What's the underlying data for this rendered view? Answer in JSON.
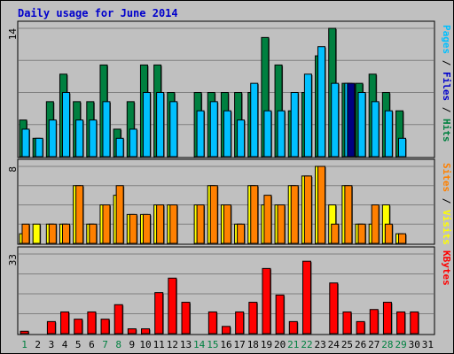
{
  "chart_data": {
    "type": "bar",
    "title": "Daily usage for June 2014",
    "categories": [
      "1",
      "2",
      "3",
      "4",
      "5",
      "6",
      "7",
      "8",
      "9",
      "10",
      "11",
      "12",
      "13",
      "14",
      "15",
      "16",
      "17",
      "18",
      "19",
      "20",
      "21",
      "22",
      "23",
      "24",
      "25",
      "26",
      "27",
      "28",
      "29",
      "30",
      "31"
    ],
    "weekend_days": [
      1,
      7,
      8,
      14,
      15,
      21,
      22,
      28,
      29
    ],
    "colors": {
      "hits": "#008040",
      "files": "#00c0ff",
      "pages": "#000080",
      "visits": "#ffff00",
      "sites": "#ff8000",
      "kbytes": "#ff0000",
      "plot_bg": "#c0c0c0",
      "grid": "#808080",
      "weekday_label": "#000000",
      "weekend_label": "#008040",
      "title": "#0000cc"
    },
    "panels": [
      {
        "name": "hits-files-pages",
        "ymax": 14,
        "ymax_label": "14",
        "legend": [
          {
            "text": "Pages",
            "color": "#00c0ff"
          },
          {
            "text": " / ",
            "color": "#000000"
          },
          {
            "text": "Files",
            "color": "#0000cc"
          },
          {
            "text": " / ",
            "color": "#000000"
          },
          {
            "text": "Hits",
            "color": "#008040"
          }
        ],
        "series": [
          {
            "name": "Hits",
            "color": "#008040",
            "values": [
              4,
              2,
              6,
              9,
              6,
              6,
              10,
              3,
              6,
              10,
              10,
              7,
              0,
              7,
              7,
              7,
              7,
              7,
              13,
              10,
              5,
              7,
              11,
              14,
              8,
              8,
              9,
              7,
              5,
              0,
              0
            ]
          },
          {
            "name": "Files",
            "color": "#00c0ff",
            "values": [
              3,
              2,
              4,
              7,
              4,
              4,
              6,
              2,
              3,
              7,
              7,
              6,
              0,
              5,
              6,
              5,
              4,
              8,
              5,
              5,
              7,
              9,
              12,
              8,
              8,
              7,
              6,
              5,
              2,
              0,
              0
            ]
          },
          {
            "name": "Pages",
            "color": "#000080",
            "values": [
              0,
              0,
              0,
              0,
              0,
              0,
              0,
              0,
              0,
              0,
              0,
              0,
              0,
              0,
              0,
              0,
              0,
              0,
              0,
              0,
              0,
              0,
              0,
              0,
              8,
              0,
              0,
              0,
              0,
              0,
              0
            ]
          }
        ]
      },
      {
        "name": "visits-sites",
        "ymax": 8,
        "ymax_label": "8",
        "legend": [
          {
            "text": "Sites",
            "color": "#ff8000"
          },
          {
            "text": " / ",
            "color": "#000000"
          },
          {
            "text": "Visits",
            "color": "#ffff00"
          }
        ],
        "series": [
          {
            "name": "Visits",
            "color": "#ffff00",
            "values": [
              1,
              2,
              2,
              2,
              6,
              2,
              4,
              5,
              3,
              3,
              4,
              4,
              0,
              4,
              6,
              4,
              2,
              6,
              4,
              4,
              6,
              7,
              8,
              4,
              6,
              2,
              2,
              4,
              1,
              0,
              0
            ]
          },
          {
            "name": "Sites",
            "color": "#ff8000",
            "values": [
              2,
              0,
              2,
              2,
              6,
              2,
              4,
              6,
              3,
              3,
              4,
              4,
              0,
              4,
              6,
              4,
              2,
              6,
              5,
              4,
              6,
              7,
              8,
              2,
              6,
              2,
              4,
              2,
              1,
              0,
              0
            ]
          }
        ]
      },
      {
        "name": "kbytes",
        "ymax": 33,
        "ymax_label": "33",
        "legend": [
          {
            "text": "KBytes",
            "color": "#ff0000"
          }
        ],
        "series": [
          {
            "name": "KBytes",
            "color": "#ff0000",
            "values": [
              1,
              0,
              5,
              9,
              6,
              9,
              6,
              12,
              2,
              2,
              17,
              23,
              13,
              0,
              9,
              3,
              9,
              13,
              27,
              16,
              5,
              30,
              0,
              21,
              9,
              5,
              10,
              13,
              9,
              9,
              0
            ]
          }
        ]
      }
    ]
  }
}
